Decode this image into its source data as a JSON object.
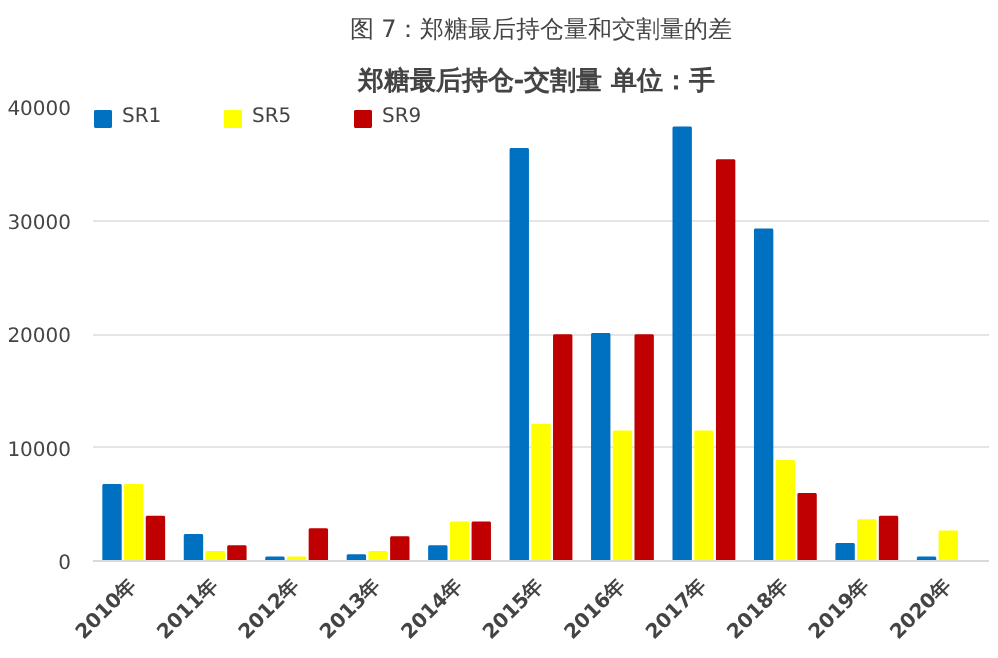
{
  "chart_data": {
    "type": "bar",
    "title": "图 7：郑糖最后持仓量和交割量的差",
    "subtitle": "郑糖最后持仓-交割量",
    "annotations": [
      "单位：手"
    ],
    "categories": [
      "2010年",
      "2011年",
      "2012年",
      "2013年",
      "2014年",
      "2015年",
      "2016年",
      "2017年",
      "2018年",
      "2019年",
      "2020年"
    ],
    "series": [
      {
        "name": "SR1",
        "color": "#0070c0",
        "values": [
          6700,
          2300,
          300,
          500,
          1300,
          36300,
          20000,
          38200,
          29200,
          1500,
          300
        ]
      },
      {
        "name": "SR5",
        "color": "#ffff00",
        "values": [
          6700,
          800,
          300,
          800,
          3400,
          12000,
          11400,
          11400,
          8800,
          3600,
          2600
        ]
      },
      {
        "name": "SR9",
        "color": "#c00000",
        "values": [
          3900,
          1300,
          2800,
          2100,
          3400,
          19900,
          19900,
          35300,
          5900,
          3900,
          null
        ]
      }
    ],
    "ylim": [
      0,
      40000
    ],
    "yticks": [
      0,
      10000,
      20000,
      30000,
      40000
    ],
    "grid": "y",
    "legend": "top"
  }
}
